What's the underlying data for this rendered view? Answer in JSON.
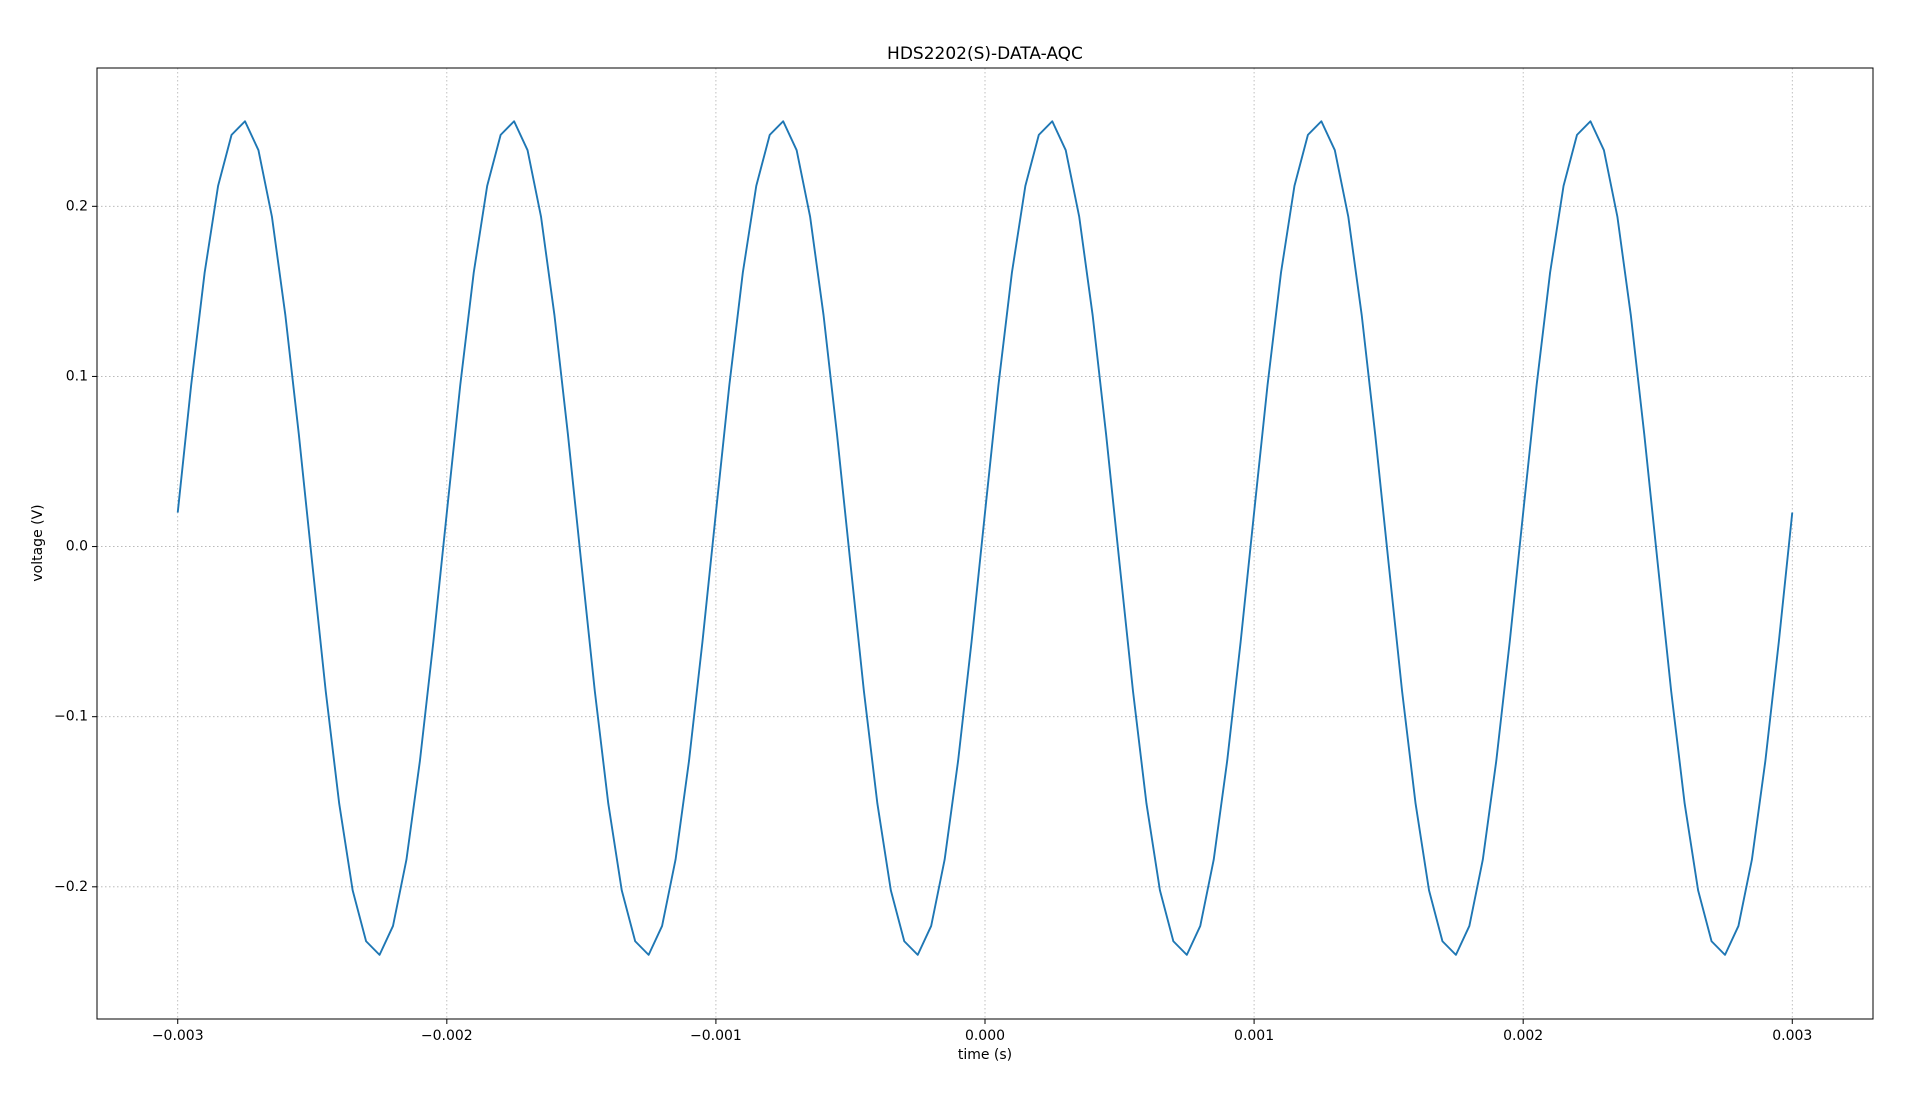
{
  "chart_data": {
    "type": "line",
    "title": "HDS2202(S)-DATA-AQC",
    "x_label": "time (s)",
    "y_label": "voltage (V)",
    "color": "#1f77b4",
    "grid": true,
    "xlim": [
      -0.0033,
      0.0033
    ],
    "ylim": [
      -0.2777,
      0.2813
    ],
    "xticks": [
      {
        "value": -0.003,
        "label": "−0.003"
      },
      {
        "value": -0.002,
        "label": "−0.002"
      },
      {
        "value": -0.001,
        "label": "−0.001"
      },
      {
        "value": 0,
        "label": "0.000"
      },
      0.001,
      0.002,
      0.003
    ],
    "yticks": [
      {
        "value": -0.2,
        "label": "−0.2"
      },
      {
        "value": -0.1,
        "label": "−0.1"
      },
      {
        "value": 0,
        "label": "0.0"
      },
      0.1,
      0.2
    ],
    "x": [
      -0.003,
      -0.00295,
      -0.0029,
      -0.00285,
      -0.0028,
      -0.00275,
      -0.0027,
      -0.00265,
      -0.0026,
      -0.00255,
      -0.0025,
      -0.00245,
      -0.0024,
      -0.00235,
      -0.0023,
      -0.00225,
      -0.0022,
      -0.00215,
      -0.0021,
      -0.00205,
      -0.002,
      -0.00195,
      -0.0019,
      -0.00185,
      -0.0018,
      -0.00175,
      -0.0017,
      -0.00165,
      -0.0016,
      -0.00155,
      -0.0015,
      -0.00145,
      -0.0014,
      -0.00135,
      -0.0013,
      -0.00125,
      -0.0012,
      -0.00115,
      -0.0011,
      -0.00105,
      -0.001,
      -0.00095,
      -0.0009,
      -0.00085,
      -0.0008,
      -0.00075,
      -0.0007,
      -0.00065,
      -0.0006,
      -0.00055,
      -0.0005,
      -0.00045,
      -0.0004,
      -0.00035,
      -0.0003,
      -0.00025,
      -0.0002,
      -0.00015,
      -0.0001,
      -5e-05,
      0,
      5e-05,
      0.0001,
      0.00015,
      0.0002,
      0.00025,
      0.0003,
      0.00035,
      0.0004,
      0.00045,
      0.0005,
      0.00055,
      0.0006,
      0.00065,
      0.0007,
      0.00075,
      0.0008,
      0.00085,
      0.0009,
      0.00095,
      0.001,
      0.00105,
      0.0011,
      0.00115,
      0.0012,
      0.00125,
      0.0013,
      0.00135,
      0.0014,
      0.00145,
      0.0015,
      0.00155,
      0.0016,
      0.00165,
      0.0017,
      0.00175,
      0.0018,
      0.00185,
      0.0019,
      0.00195,
      0.002,
      0.00205,
      0.0021,
      0.00215,
      0.0022,
      0.00225,
      0.0023,
      0.00235,
      0.0024,
      0.00245,
      0.0025,
      0.00255,
      0.0026,
      0.00265,
      0.0027,
      0.00275,
      0.0028,
      0.00285,
      0.0029,
      0.00295,
      0.003
    ],
    "values": [
      0.02,
      0.095,
      0.161,
      0.212,
      0.242,
      0.25,
      0.233,
      0.194,
      0.136,
      0.066,
      -0.01,
      -0.085,
      -0.151,
      -0.202,
      -0.232,
      -0.24,
      -0.223,
      -0.184,
      -0.126,
      -0.056,
      0.02,
      0.095,
      0.161,
      0.212,
      0.242,
      0.25,
      0.233,
      0.194,
      0.136,
      0.066,
      -0.01,
      -0.085,
      -0.151,
      -0.202,
      -0.232,
      -0.24,
      -0.223,
      -0.184,
      -0.126,
      -0.056,
      0.02,
      0.095,
      0.161,
      0.212,
      0.242,
      0.25,
      0.233,
      0.194,
      0.136,
      0.066,
      -0.01,
      -0.085,
      -0.151,
      -0.202,
      -0.232,
      -0.24,
      -0.223,
      -0.184,
      -0.126,
      -0.056,
      0.02,
      0.095,
      0.161,
      0.212,
      0.242,
      0.25,
      0.233,
      0.194,
      0.136,
      0.066,
      -0.01,
      -0.085,
      -0.151,
      -0.202,
      -0.232,
      -0.24,
      -0.223,
      -0.184,
      -0.126,
      -0.056,
      0.02,
      0.095,
      0.161,
      0.212,
      0.242,
      0.25,
      0.233,
      0.194,
      0.136,
      0.066,
      -0.01,
      -0.085,
      -0.151,
      -0.202,
      -0.232,
      -0.24,
      -0.223,
      -0.184,
      -0.126,
      -0.056,
      0.02,
      0.095,
      0.161,
      0.212,
      0.242,
      0.25,
      0.233,
      0.194,
      0.136,
      0.066,
      -0.01,
      -0.085,
      -0.151,
      -0.202,
      -0.232,
      -0.24,
      -0.223,
      -0.184,
      -0.126,
      -0.056,
      0.02
    ]
  }
}
